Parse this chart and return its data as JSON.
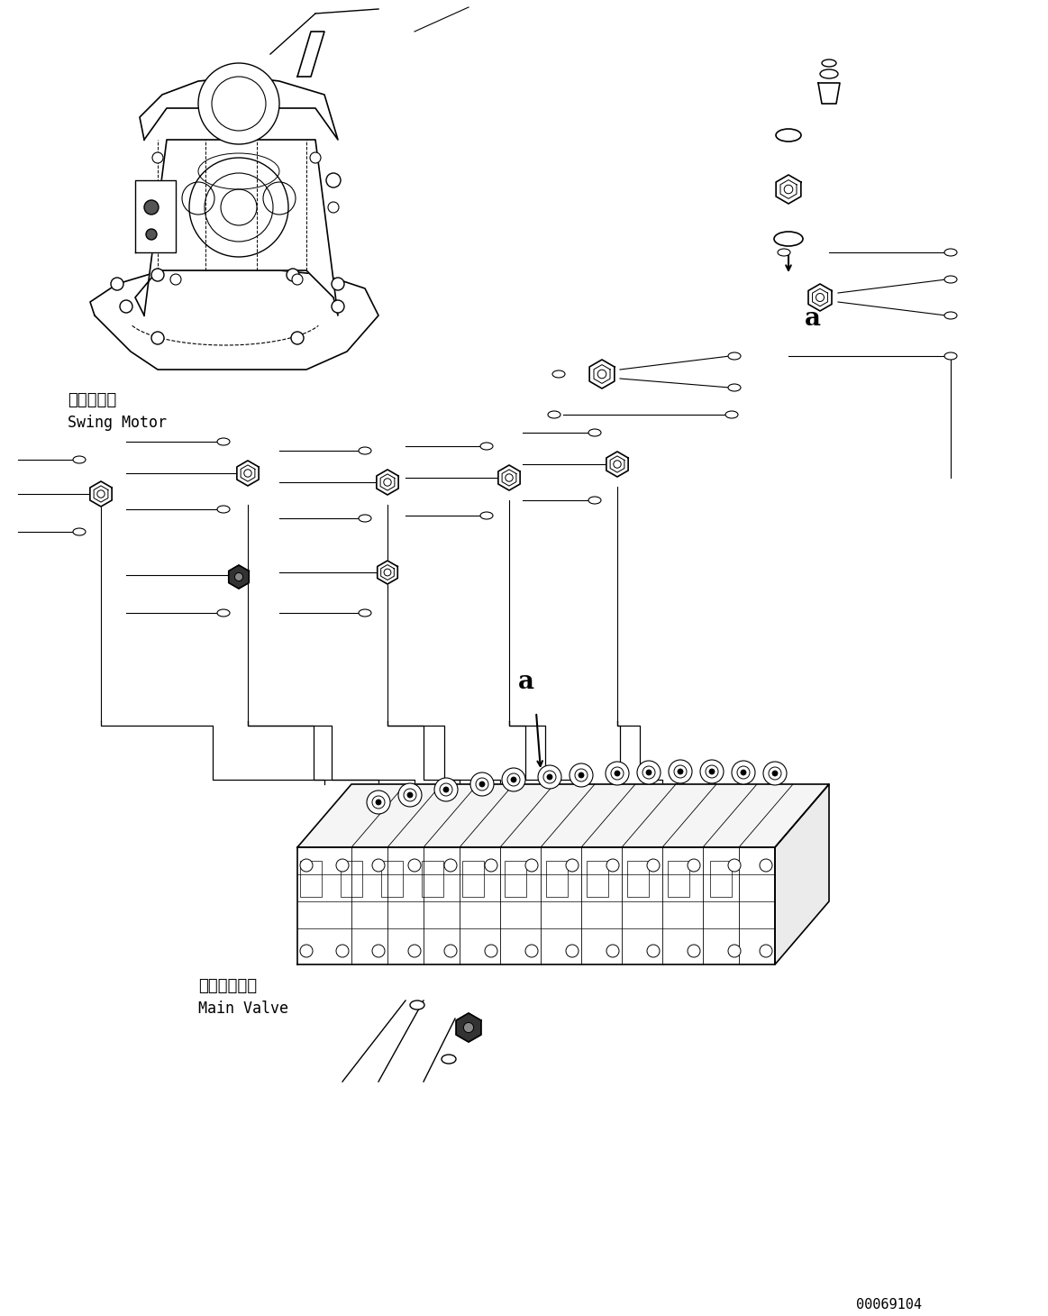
{
  "background_color": "#ffffff",
  "line_color": "#000000",
  "figsize": [
    11.63,
    14.6
  ],
  "dpi": 100,
  "label_swing_motor_jp": "旋回モータ",
  "label_swing_motor_en": "Swing Motor",
  "label_main_valve_jp": "メインバルブ",
  "label_main_valve_en": "Main Valve",
  "label_a": "a",
  "doc_number": "00069104"
}
